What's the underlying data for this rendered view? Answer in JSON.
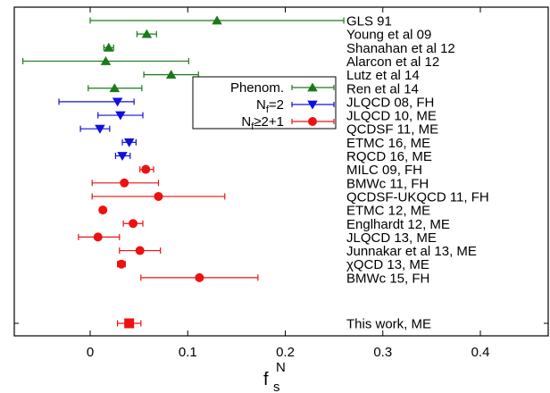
{
  "chart_data": {
    "type": "scatter",
    "xlabel": "f",
    "xlabel_sub": "s",
    "xlabel_sup": "N",
    "xlim": [
      -0.07,
      0.47
    ],
    "xticks": [
      "0",
      "0.1",
      "0.2",
      "0.3",
      "0.4"
    ],
    "xtick_values": [
      0,
      0.1,
      0.2,
      0.3,
      0.4
    ],
    "grid": false,
    "legend_position": "upper-middle",
    "series": [
      {
        "name": "Phenom.",
        "color": "#1a7a1a",
        "marker": "triangle-up",
        "points": [
          {
            "label": "GLS 91",
            "x": 0.13,
            "xerr_low": 0.13,
            "xerr_high": 0.13
          },
          {
            "label": "Young et al 09",
            "x": 0.058,
            "xerr_low": 0.01,
            "xerr_high": 0.01
          },
          {
            "label": "Shanahan et al 12",
            "x": 0.019,
            "xerr_low": 0.005,
            "xerr_high": 0.005
          },
          {
            "label": "Alarcon et al 12",
            "x": 0.016,
            "xerr_low": 0.085,
            "xerr_high": 0.085
          },
          {
            "label": "Lutz et al 14",
            "x": 0.083,
            "xerr_low": 0.028,
            "xerr_high": 0.028
          },
          {
            "label": "Ren et al 14",
            "x": 0.025,
            "xerr_low": 0.027,
            "xerr_high": 0.028
          }
        ]
      },
      {
        "name": "N_f=2",
        "color": "#1010dd",
        "marker": "triangle-down",
        "points": [
          {
            "label": "JLQCD 08, FH",
            "x": 0.028,
            "xerr_low": 0.06,
            "xerr_high": 0.017
          },
          {
            "label": "JLQCD 10, ME",
            "x": 0.031,
            "xerr_low": 0.023,
            "xerr_high": 0.023
          },
          {
            "label": "QCDSF 11, ME",
            "x": 0.01,
            "xerr_low": 0.02,
            "xerr_high": 0.01
          },
          {
            "label": "ETMC 16, ME",
            "x": 0.04,
            "xerr_low": 0.007,
            "xerr_high": 0.007
          },
          {
            "label": "RQCD 16, ME",
            "x": 0.033,
            "xerr_low": 0.007,
            "xerr_high": 0.008
          }
        ]
      },
      {
        "name": "N_f≥2+1",
        "color": "#ee1111",
        "marker": "circle",
        "points": [
          {
            "label": "MILC 09, FH",
            "x": 0.057,
            "xerr_low": 0.006,
            "xerr_high": 0.008
          },
          {
            "label": "BMWc 11, FH",
            "x": 0.035,
            "xerr_low": 0.033,
            "xerr_high": 0.035
          },
          {
            "label": "QCDSF-UKQCD 11, FH",
            "x": 0.07,
            "xerr_low": 0.068,
            "xerr_high": 0.068
          },
          {
            "label": "ETMC 12, ME",
            "x": 0.013,
            "xerr_low": 0.003,
            "xerr_high": 0.003
          },
          {
            "label": "Englhardt 12, ME",
            "x": 0.044,
            "xerr_low": 0.01,
            "xerr_high": 0.01
          },
          {
            "label": "JLQCD 13, ME",
            "x": 0.008,
            "xerr_low": 0.02,
            "xerr_high": 0.022
          },
          {
            "label": "Junnakar et al 13, ME",
            "x": 0.051,
            "xerr_low": 0.021,
            "xerr_high": 0.021
          },
          {
            "label": "χQCD 13, ME",
            "x": 0.032,
            "xerr_low": 0.004,
            "xerr_high": 0.004
          },
          {
            "label": "BMWc 15, FH",
            "x": 0.112,
            "xerr_low": 0.06,
            "xerr_high": 0.06
          },
          {
            "label": "This work, ME",
            "x": 0.04,
            "xerr_low": 0.012,
            "xerr_high": 0.012,
            "marker": "square"
          }
        ]
      }
    ]
  }
}
